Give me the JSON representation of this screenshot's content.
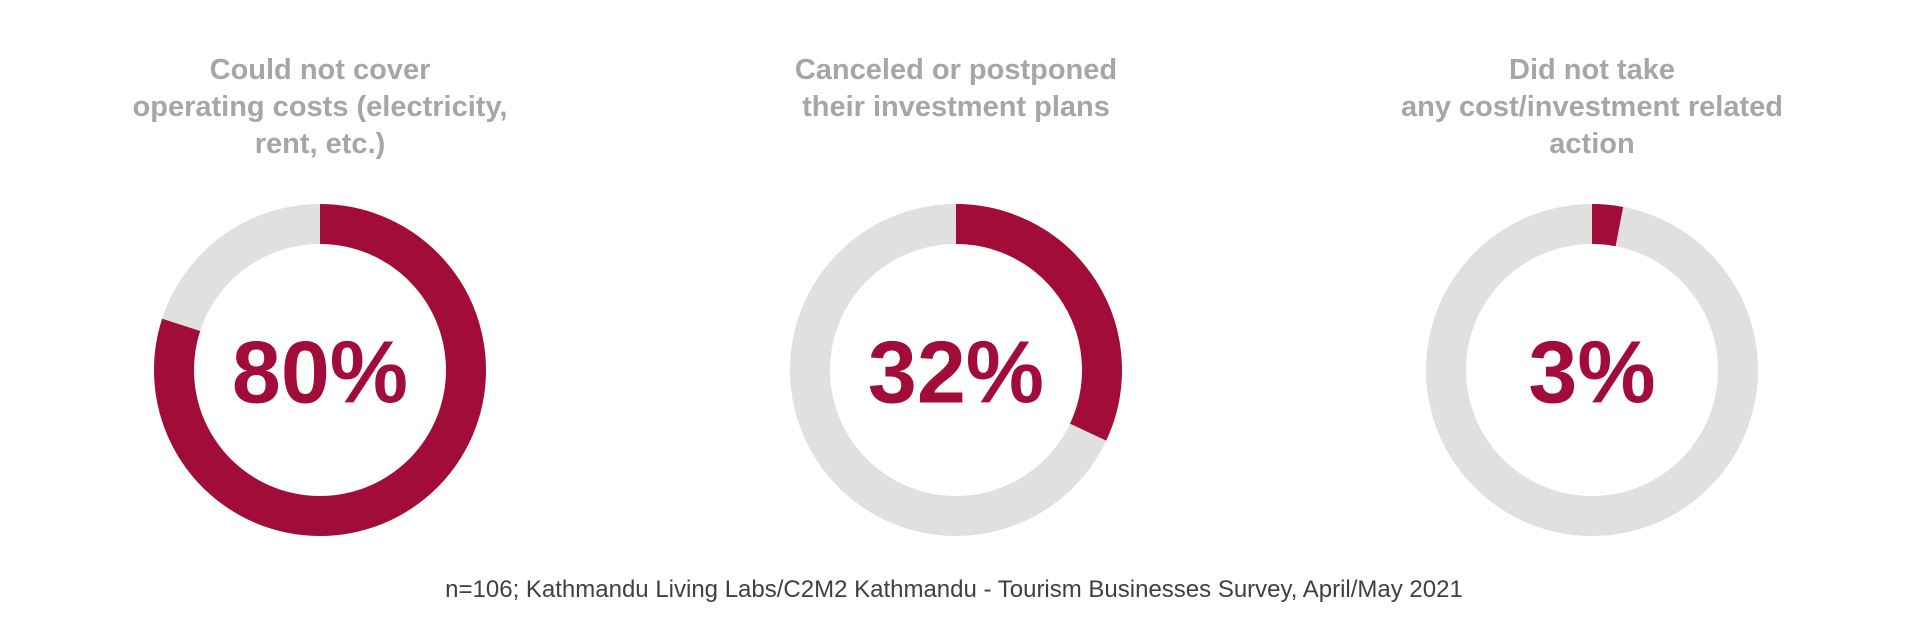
{
  "colors": {
    "highlight": "#A10C38",
    "track": "#E0E0E0",
    "title_text": "#A6A6A6",
    "note_text": "#404040"
  },
  "chart_data": [
    {
      "type": "pie",
      "title": "Could not cover\noperating costs (electricity,\nrent, etc.)",
      "value": 80,
      "value_label": "80%",
      "max": 100
    },
    {
      "type": "pie",
      "title": "Canceled or postponed\ntheir investment plans",
      "value": 32,
      "value_label": "32%",
      "max": 100
    },
    {
      "type": "pie",
      "title": "Did not take\nany cost/investment related\naction",
      "value": 3,
      "value_label": "3%",
      "max": 100
    }
  ],
  "source_note": "n=106; Kathmandu Living Labs/C2M2 Kathmandu - Tourism Businesses Survey, April/May 2021"
}
